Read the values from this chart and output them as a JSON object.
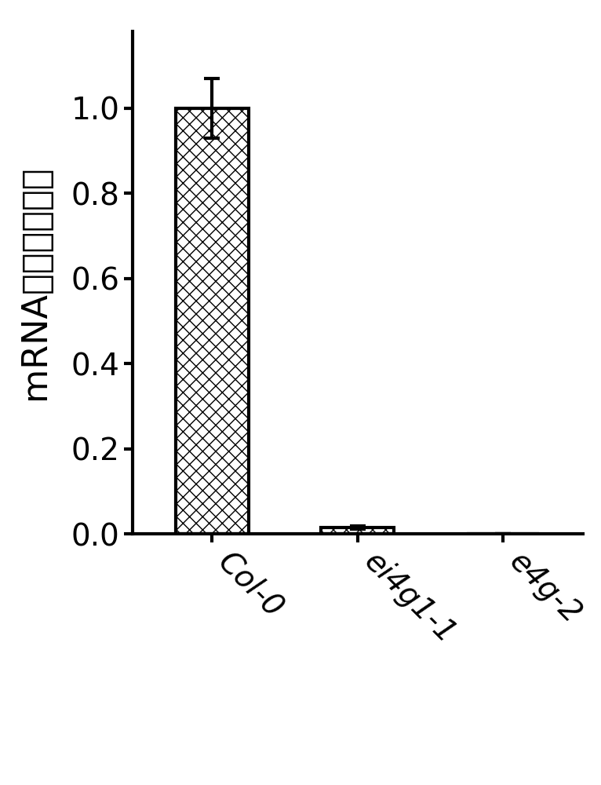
{
  "categories": [
    "Col-0",
    "ei4g1-1",
    "e4g-2"
  ],
  "values": [
    1.0,
    0.015,
    0.0
  ],
  "errors": [
    0.07,
    0.004,
    0.0
  ],
  "ylim": [
    0,
    1.18
  ],
  "yticks": [
    0.0,
    0.2,
    0.4,
    0.6,
    0.8,
    1.0
  ],
  "ylabel": "mRNA相对表达水平",
  "bar_edgecolor": "#000000",
  "background_color": "#ffffff",
  "tick_fontsize": 28,
  "ylabel_fontsize": 32,
  "xlabel_fontsize": 28,
  "bar_width": 0.5,
  "linewidth": 3.0,
  "cap_size": 7,
  "error_linewidth": 3.0
}
